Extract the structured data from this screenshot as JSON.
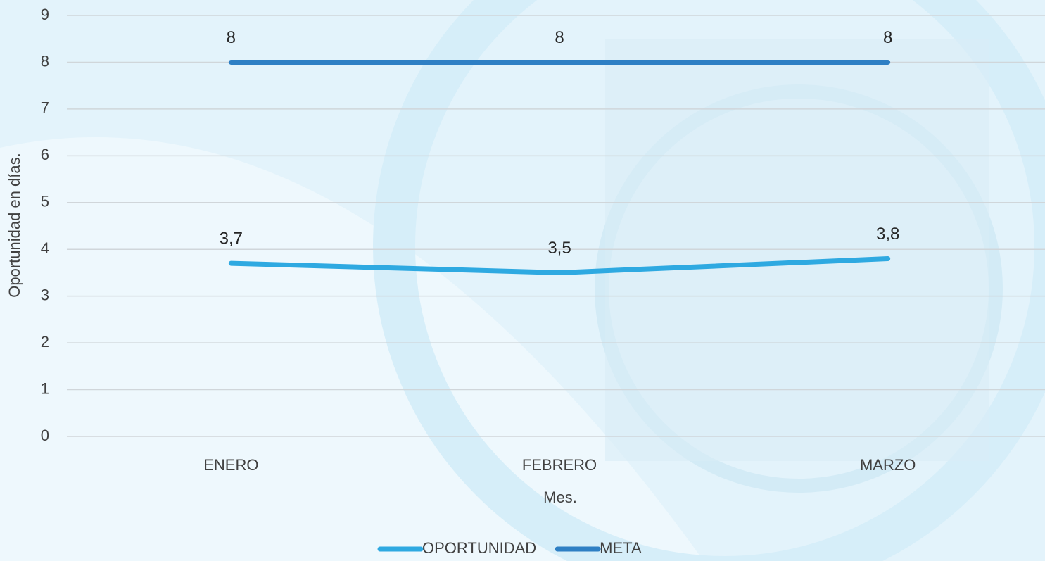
{
  "chart_data": {
    "type": "line",
    "x_label": "Mes.",
    "y_label": "Oportunidad en días.",
    "categories": [
      "ENERO",
      "FEBRERO",
      "MARZO"
    ],
    "series": [
      {
        "name": "OPORTUNIDAD",
        "color": "#2ea9e1",
        "values": [
          3.7,
          3.5,
          3.8
        ],
        "value_labels": [
          "3,7",
          "3,5",
          "3,8"
        ]
      },
      {
        "name": "META",
        "color": "#2e7fc4",
        "values": [
          8,
          8,
          8
        ]
      }
    ],
    "ylim": [
      0,
      9
    ],
    "yticks": [
      0,
      1,
      2,
      3,
      4,
      5,
      6,
      7,
      8,
      9
    ],
    "grid": true,
    "legend": "bottom"
  }
}
